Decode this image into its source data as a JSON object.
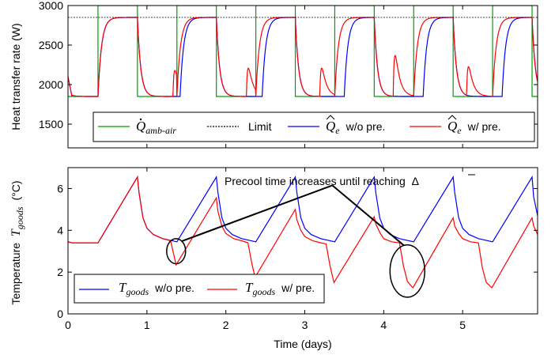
{
  "chart_data": [
    {
      "type": "line",
      "ylabel": "Heat transfer rate (W)",
      "xlim": [
        0,
        5.95
      ],
      "ylim": [
        1200,
        3000
      ],
      "yticks": [
        1500,
        2000,
        2500,
        3000
      ],
      "grid": false,
      "legend": {
        "placement": "bottom",
        "entries": [
          {
            "symbol": "Q",
            "dot": true,
            "hat": false,
            "subscript": "amb-air",
            "suffix": "",
            "color": "#00a000",
            "dash": false
          },
          {
            "symbol": "",
            "dot": false,
            "hat": false,
            "subscript": "",
            "suffix": "Limit",
            "color": "#000000",
            "dash": true
          },
          {
            "symbol": "Q",
            "dot": false,
            "hat": true,
            "subscript": "e",
            "suffix": "w/o pre.",
            "color": "#0000ff",
            "dash": false
          },
          {
            "symbol": "Q",
            "dot": false,
            "hat": true,
            "subscript": "e",
            "suffix": "w/ pre.",
            "color": "#ff0000",
            "dash": false
          }
        ]
      },
      "limit": 2850,
      "series": [
        {
          "key": "amb",
          "color": "#00a000",
          "high": 3000,
          "low": 1850,
          "high_start": 0.38,
          "high_len": 0.5,
          "period": 1.0
        },
        {
          "key": "qe_nopre",
          "color": "#0000ff",
          "base": 1850,
          "top": 2850
        },
        {
          "key": "qe_pre",
          "color": "#ff0000",
          "base": 1850,
          "top": 2850
        }
      ]
    },
    {
      "type": "line",
      "xlabel": "Time (days)",
      "ylabel_main": "Temperature",
      "ylabel_symbol": "T",
      "ylabel_sub": "goods",
      "ylabel_unit": "(°C)",
      "xlim": [
        0,
        5.95
      ],
      "ylim": [
        0,
        7
      ],
      "xticks": [
        0,
        1,
        2,
        3,
        4,
        5
      ],
      "yticks": [
        0,
        2,
        4,
        6
      ],
      "grid": false,
      "annotation": {
        "text": "Precool time increases until reaching",
        "symbol": "Δ",
        "apex": [
          3.35,
          6.15
        ],
        "ellipse1": {
          "cx": 1.37,
          "cy": 3.0,
          "rx": 0.12,
          "ry": 0.6
        },
        "ellipse2": {
          "cx": 4.3,
          "cy": 2.05,
          "rx": 0.22,
          "ry": 1.25
        }
      },
      "legend": {
        "placement": "bottom-left",
        "entries": [
          {
            "symbol": "T",
            "subscript": "goods",
            "suffix": "w/o pre.",
            "color": "#0000ff"
          },
          {
            "symbol": "T",
            "subscript": "goods",
            "suffix": "w/ pre.",
            "color": "#ff0000"
          }
        ]
      },
      "series": [
        {
          "key": "t_nopre",
          "color": "#0000ff",
          "points": [
            [
              0,
              3.45
            ],
            [
              0.05,
              3.4
            ],
            [
              0.38,
              3.4
            ],
            [
              0.88,
              6.55
            ],
            [
              0.9,
              5.8
            ],
            [
              0.95,
              4.6
            ],
            [
              1.0,
              4.1
            ],
            [
              1.08,
              3.8
            ],
            [
              1.2,
              3.6
            ],
            [
              1.38,
              3.45
            ],
            [
              1.88,
              6.55
            ],
            [
              1.9,
              5.8
            ],
            [
              1.95,
              4.6
            ],
            [
              2.0,
              4.1
            ],
            [
              2.08,
              3.8
            ],
            [
              2.2,
              3.6
            ],
            [
              2.38,
              3.45
            ],
            [
              2.88,
              6.55
            ],
            [
              2.9,
              5.8
            ],
            [
              2.95,
              4.6
            ],
            [
              3.0,
              4.1
            ],
            [
              3.08,
              3.8
            ],
            [
              3.2,
              3.6
            ],
            [
              3.38,
              3.45
            ],
            [
              3.88,
              6.55
            ],
            [
              3.9,
              5.8
            ],
            [
              3.95,
              4.6
            ],
            [
              4.0,
              4.1
            ],
            [
              4.08,
              3.8
            ],
            [
              4.2,
              3.6
            ],
            [
              4.38,
              3.45
            ],
            [
              4.88,
              6.55
            ],
            [
              4.9,
              5.8
            ],
            [
              4.95,
              4.6
            ],
            [
              5.0,
              4.1
            ],
            [
              5.08,
              3.8
            ],
            [
              5.2,
              3.6
            ],
            [
              5.38,
              3.45
            ],
            [
              5.88,
              6.55
            ],
            [
              5.9,
              5.6
            ],
            [
              5.95,
              4.7
            ]
          ]
        },
        {
          "key": "t_pre",
          "color": "#ff0000",
          "points": [
            [
              0,
              3.45
            ],
            [
              0.05,
              3.4
            ],
            [
              0.38,
              3.4
            ],
            [
              0.88,
              6.55
            ],
            [
              0.9,
              5.8
            ],
            [
              0.95,
              4.6
            ],
            [
              1.0,
              4.1
            ],
            [
              1.08,
              3.8
            ],
            [
              1.2,
              3.6
            ],
            [
              1.3,
              3.5
            ],
            [
              1.37,
              2.35
            ],
            [
              1.88,
              5.55
            ],
            [
              1.9,
              4.9
            ],
            [
              1.95,
              4.2
            ],
            [
              2.0,
              3.85
            ],
            [
              2.1,
              3.6
            ],
            [
              2.2,
              3.5
            ],
            [
              2.28,
              3.4
            ],
            [
              2.33,
              2.4
            ],
            [
              2.37,
              1.75
            ],
            [
              2.88,
              5.0
            ],
            [
              2.9,
              4.5
            ],
            [
              2.95,
              4.0
            ],
            [
              3.0,
              3.7
            ],
            [
              3.1,
              3.5
            ],
            [
              3.2,
              3.4
            ],
            [
              3.27,
              3.35
            ],
            [
              3.32,
              2.3
            ],
            [
              3.37,
              1.5
            ],
            [
              3.88,
              4.65
            ],
            [
              3.9,
              4.3
            ],
            [
              3.95,
              3.9
            ],
            [
              4.0,
              3.6
            ],
            [
              4.1,
              3.45
            ],
            [
              4.2,
              3.4
            ],
            [
              4.25,
              2.3
            ],
            [
              4.3,
              1.55
            ],
            [
              4.37,
              1.25
            ],
            [
              4.88,
              4.6
            ],
            [
              4.9,
              4.2
            ],
            [
              4.95,
              3.85
            ],
            [
              5.0,
              3.6
            ],
            [
              5.1,
              3.45
            ],
            [
              5.2,
              3.4
            ],
            [
              5.25,
              2.2
            ],
            [
              5.3,
              1.5
            ],
            [
              5.37,
              1.25
            ],
            [
              5.88,
              4.6
            ],
            [
              5.9,
              4.2
            ],
            [
              5.95,
              3.8
            ]
          ]
        }
      ]
    }
  ]
}
